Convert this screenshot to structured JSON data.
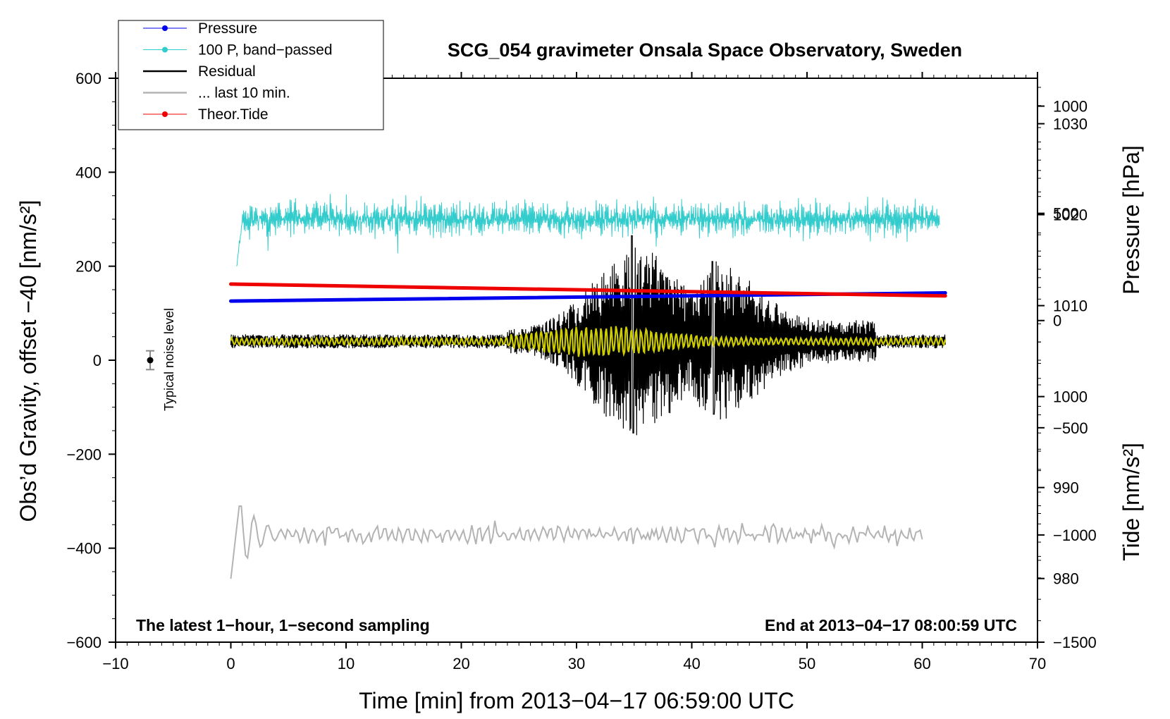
{
  "chart_data": {
    "type": "line",
    "title": "SCG_054 gravimeter Onsala Space Observatory, Sweden",
    "xlabel": "Time [min] from 2013−04−17 06:59:00 UTC",
    "ylabel_left": "Obs’d Gravity, offset −40 [nm/s²]",
    "ylabel_right_top": "Pressure [hPa]",
    "ylabel_right_bottom": "Tide [nm/s²]",
    "xlim": [
      -10,
      70
    ],
    "ylim": [
      -600,
      600
    ],
    "pressure_axis_range": [
      973,
      1035
    ],
    "tide_axis_range": [
      -1500,
      1130
    ],
    "x_ticks": [
      -10,
      0,
      10,
      20,
      30,
      40,
      50,
      60,
      70
    ],
    "x_tick_labels": [
      "−10",
      "0",
      "10",
      "20",
      "30",
      "40",
      "50",
      "60",
      "70"
    ],
    "y_ticks": [
      600,
      400,
      200,
      0,
      -200,
      -400,
      -600
    ],
    "y_tick_labels": [
      "600",
      "400",
      "200",
      "0",
      "−200",
      "−400",
      "−600"
    ],
    "pressure_ticks": [
      1030,
      1020,
      1010,
      1000,
      990,
      980
    ],
    "pressure_tick_labels": [
      "1030",
      "1020",
      "1010",
      "1000",
      "990",
      "980"
    ],
    "tide_ticks": [
      1000,
      500,
      0,
      -500,
      -1000,
      -1500
    ],
    "tide_tick_labels": [
      "1000",
      "500",
      "0",
      "−500",
      "−1000",
      "−1500"
    ],
    "annotations": {
      "bottom_left": "The latest 1−hour, 1−second sampling",
      "bottom_right": "End at 2013−04−17 08:00:59 UTC",
      "noise_label": "Typical noise level"
    },
    "noise_marker": {
      "x": -7,
      "y": 0,
      "error": 20
    },
    "legend": [
      {
        "name": "Pressure",
        "color": "#0000ee",
        "marker": "dot"
      },
      {
        "name": "100 P, band−passed",
        "color": "#33cccc",
        "marker": "dot"
      },
      {
        "name": "Residual",
        "color": "#000000",
        "marker": "none"
      },
      {
        "name": "... last 10 min.",
        "color": "#b3b3b3",
        "marker": "none"
      },
      {
        "name": "Theor.Tide",
        "color": "#ee0000",
        "marker": "dot"
      }
    ],
    "series": [
      {
        "name": "Pressure",
        "axis": "pressure",
        "color": "#0000ee",
        "x": [
          0,
          62
        ],
        "y": [
          1010.5,
          1011.4
        ]
      },
      {
        "name": "100 P, band−passed",
        "axis": "gravity",
        "color": "#33cccc",
        "x_range": [
          0.5,
          61.5
        ],
        "baseline": 300,
        "amplitude_typical": 30,
        "amplitude_max": 70,
        "start_dip": 200
      },
      {
        "name": "Residual",
        "axis": "gravity",
        "color": "#000000",
        "x_range": [
          0,
          62
        ],
        "baseline": 40,
        "noise_amplitude": 15,
        "events": [
          {
            "x_start": 24,
            "x_end": 40,
            "peak_x": 34.8,
            "peak_max": 265,
            "peak_min": -155
          },
          {
            "x_start": 40,
            "x_end": 56,
            "peak_x": 41.8,
            "peak_max": 210,
            "peak_min": -115
          }
        ]
      },
      {
        "name": "Residual (filtered)",
        "axis": "gravity",
        "color": "#cccc00",
        "x_range": [
          0,
          62
        ],
        "baseline": 40,
        "amplitude_typical": 8,
        "amplitude_max": 35
      },
      {
        "name": "... last 10 min.",
        "axis": "gravity",
        "color": "#b3b3b3",
        "x_range": [
          0,
          60
        ],
        "baseline": -370,
        "amplitude_typical": 20,
        "start_min": -465,
        "first_peak": -295
      },
      {
        "name": "Theor.Tide",
        "axis": "tide",
        "color": "#ee0000",
        "x": [
          0,
          62
        ],
        "y": [
          170,
          115
        ]
      }
    ]
  }
}
